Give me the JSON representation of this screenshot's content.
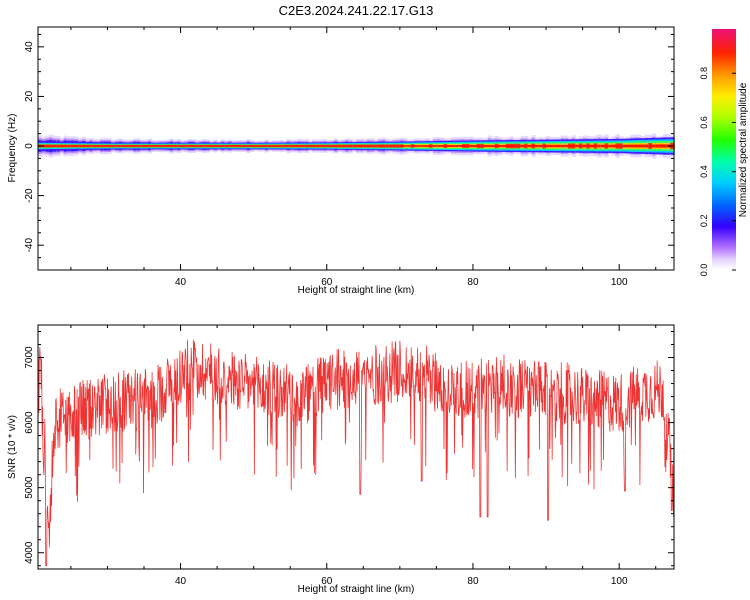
{
  "title": "C2E3.2024.241.22.17.G13",
  "colors": {
    "snr_line": "#ee3333",
    "axis": "#000000"
  },
  "chart_data": [
    {
      "type": "heatmap",
      "xlabel": "Height of straight line (km)",
      "ylabel": "Frequency (Hz)",
      "xlim": [
        20.5,
        107.5
      ],
      "ylim": [
        -50,
        48
      ],
      "xticks": [
        40,
        60,
        80,
        100
      ],
      "yticks": [
        -40,
        -20,
        0,
        20,
        40
      ],
      "colorbar": {
        "label": "Normalized spectral amplitude",
        "range": [
          0.0,
          0.98
        ],
        "ticks": [
          0.0,
          0.2,
          0.4,
          0.6,
          0.8
        ],
        "tick_labels": [
          "0.0",
          "0.2",
          "0.4",
          "0.6",
          "0.8"
        ],
        "colormap": "rainbow"
      },
      "band": {
        "center_hz": 0,
        "core_halfwidth_hz": [
          [
            21,
            1.0
          ],
          [
            30,
            0.8
          ],
          [
            40,
            0.8
          ],
          [
            50,
            0.8
          ],
          [
            60,
            0.9
          ],
          [
            70,
            1.1
          ],
          [
            80,
            1.4
          ],
          [
            90,
            1.6
          ],
          [
            100,
            1.8
          ],
          [
            107,
            2.2
          ]
        ],
        "halo_halfwidth_hz": [
          [
            21,
            4.0
          ],
          [
            30,
            2.8
          ],
          [
            40,
            2.5
          ],
          [
            50,
            2.4
          ],
          [
            60,
            2.6
          ],
          [
            70,
            3.0
          ],
          [
            80,
            3.5
          ],
          [
            90,
            3.8
          ],
          [
            100,
            4.0
          ],
          [
            107,
            4.5
          ]
        ]
      }
    },
    {
      "type": "line",
      "xlabel": "Height of straight line (km)",
      "ylabel": "SNR (10 * v/v)",
      "xlim": [
        20.5,
        107.5
      ],
      "ylim": [
        3750,
        7500
      ],
      "xticks": [
        40,
        60,
        80,
        100
      ],
      "yticks": [
        4000,
        5000,
        6000,
        7000
      ],
      "series": [
        {
          "color": "#ee3333",
          "trend_x": [
            20.5,
            21,
            21.5,
            22,
            22.5,
            23,
            24,
            25,
            27,
            30,
            33,
            36,
            38,
            40,
            42,
            45,
            48,
            50,
            53,
            56,
            60,
            63,
            66,
            70,
            73,
            76,
            80,
            83,
            86,
            90,
            93,
            96,
            100,
            103,
            105,
            106,
            106.5,
            107,
            107.5
          ],
          "trend_y": [
            6900,
            6700,
            5600,
            4400,
            5500,
            6000,
            6100,
            6100,
            6200,
            6300,
            6350,
            6350,
            6550,
            6750,
            6850,
            6750,
            6600,
            6550,
            6500,
            6350,
            6600,
            6700,
            6700,
            6800,
            6750,
            6550,
            6500,
            6600,
            6550,
            6450,
            6450,
            6350,
            6300,
            6450,
            6500,
            6500,
            5900,
            5500,
            6000
          ],
          "noise_amplitude": 480,
          "min_dips": [
            [
              21.6,
              3800
            ],
            [
              81.0,
              4550
            ],
            [
              82.0,
              4550
            ],
            [
              90.3,
              4500
            ],
            [
              64.6,
              4900
            ],
            [
              107.2,
              4650
            ],
            [
              73.0,
              5100
            ],
            [
              100.8,
              4950
            ]
          ],
          "samples": 1400
        }
      ]
    }
  ]
}
